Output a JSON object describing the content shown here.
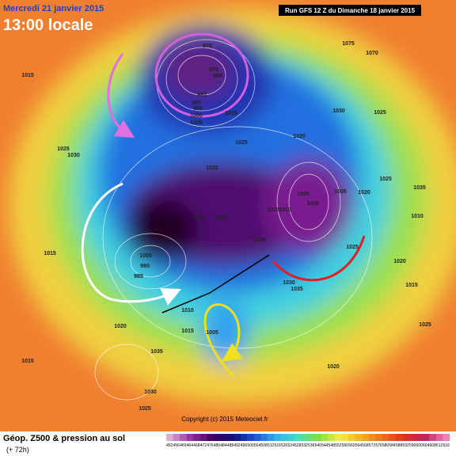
{
  "header": {
    "date": "Mercredi 21 janvier 2015",
    "time": "13:00 locale",
    "run": "Run GFS 12 Z du Dimanche 18 janvier 2015"
  },
  "copyright": "Copyright (c) 2015 Meteociel.fr",
  "footer": {
    "title": "Géop. Z500 & pression au sol",
    "lead": "(+ 72h)"
  },
  "scale_labels": [
    452,
    456,
    460,
    464,
    468,
    472,
    476,
    480,
    484,
    488,
    492,
    496,
    500,
    504,
    508,
    512,
    516,
    520,
    524,
    528,
    532,
    536,
    540,
    544,
    548,
    552,
    556,
    560,
    564,
    568,
    572,
    576,
    580,
    584,
    588,
    592,
    596,
    600,
    604,
    608,
    612,
    616
  ],
  "isobar_labels": [
    "1015",
    "970",
    "975",
    "980",
    "985",
    "990",
    "995",
    "1000",
    "1005",
    "1015",
    "1025",
    "1020",
    "1030",
    "1025",
    "1075",
    "1070",
    "1030",
    "1025",
    "1025",
    "1000",
    "1005",
    "1005",
    "1020",
    "1025",
    "1010",
    "1010",
    "1015",
    "1010",
    "1030",
    "1025",
    "1005",
    "990",
    "985",
    "1015",
    "1030",
    "1035",
    "1010",
    "1015",
    "1005",
    "1020",
    "1035",
    "1015",
    "1030",
    "1025",
    "1020",
    "1035",
    "1010",
    "1020",
    "1015",
    "1025"
  ]
}
